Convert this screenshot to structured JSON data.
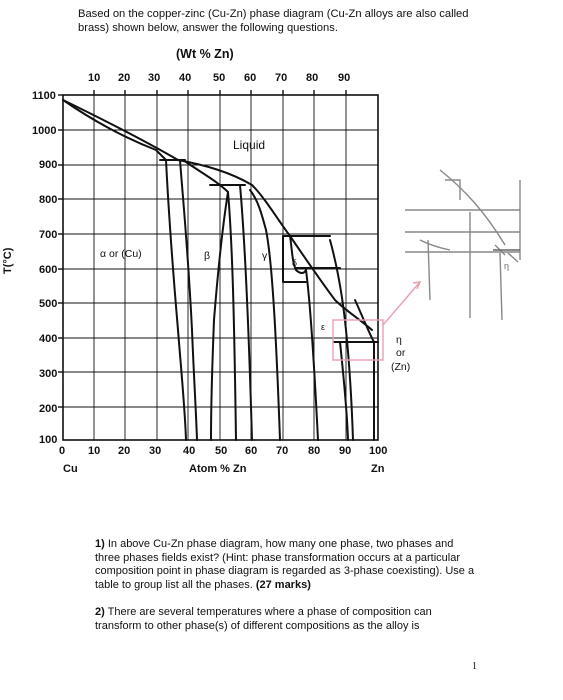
{
  "intro": "Based on the copper-zinc (Cu-Zn) phase diagram (Cu-Zn alloys are also called brass) shown below, answer the following questions.",
  "diagram": {
    "top_axis_label": "(Wt % Zn)",
    "top_ticks": [
      "10",
      "20",
      "30",
      "40",
      "50",
      "60",
      "70",
      "80",
      "90"
    ],
    "y_axis_label": "T(°C)",
    "y_ticks": [
      "1100",
      "1000",
      "900",
      "800",
      "700",
      "600",
      "500",
      "400",
      "300",
      "200",
      "100"
    ],
    "bottom_ticks": [
      "0",
      "10",
      "20",
      "30",
      "40",
      "50",
      "60",
      "70",
      "80",
      "90",
      "100"
    ],
    "bottom_left_label": "Cu",
    "bottom_center_label": "Atom % Zn",
    "bottom_right_label": "Zn",
    "phase_labels": {
      "liquid": "Liquid",
      "alpha": "α or (Cu)",
      "beta": "β",
      "gamma": "γ",
      "delta": "δ",
      "epsilon": "ε",
      "eta": "η",
      "eta_or": "or",
      "eta_zn": "(Zn)",
      "zoom_eta": "η"
    },
    "colors": {
      "highlight": "#e8a0b0",
      "zoom_line": "#888888",
      "ink": "#111111"
    }
  },
  "questions": [
    {
      "number": "1)",
      "text": "In above Cu-Zn phase diagram, how many one phase, two phases and three phases fields exist? (Hint: phase transformation occurs at a particular composition point in phase diagram is regarded as 3-phase coexisting). Use a table to group list all the phases.",
      "marks": "(27 marks)"
    },
    {
      "number": "2)",
      "text": "There are several temperatures where a phase of composition can transform to other phase(s) of different compositions as the alloy is",
      "marks": ""
    }
  ],
  "page_number": "1"
}
